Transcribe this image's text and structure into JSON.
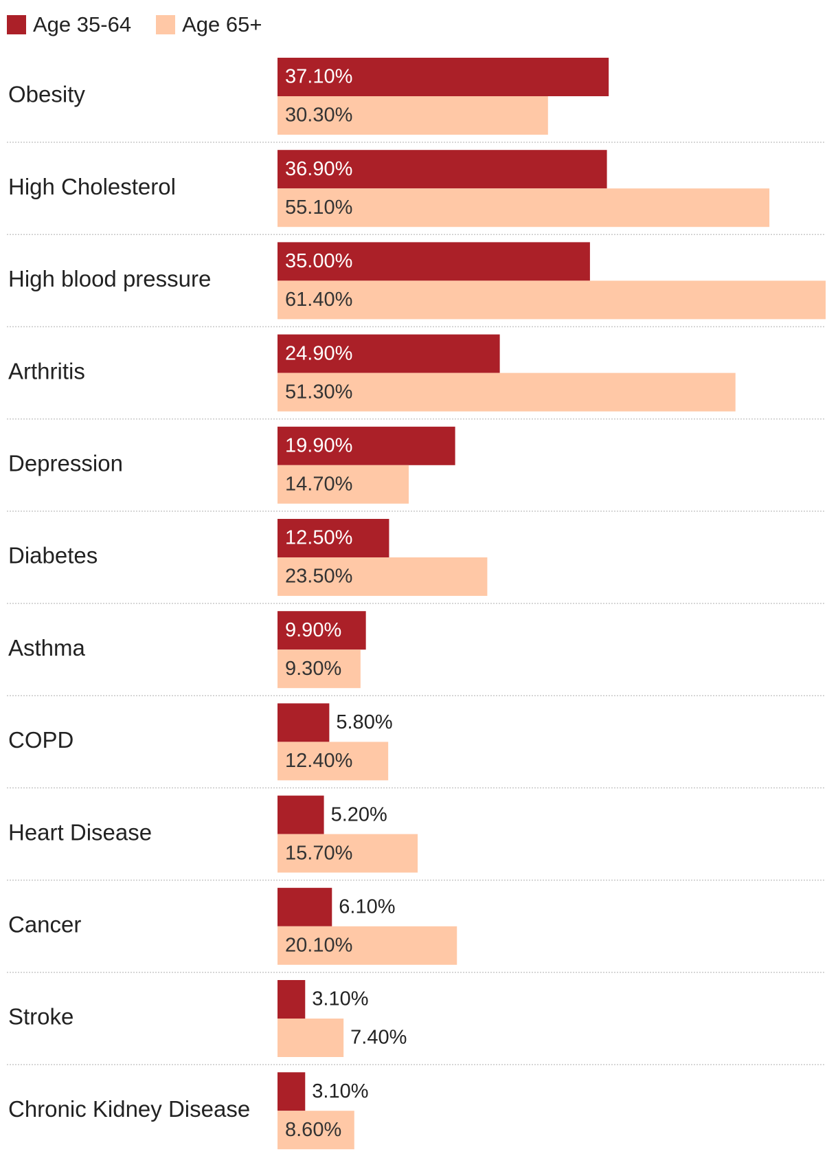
{
  "chart_data": {
    "type": "bar",
    "orientation": "horizontal",
    "title": "",
    "xlabel": "",
    "ylabel": "",
    "xlim": [
      0,
      61.4
    ],
    "grid": false,
    "legend_position": "top-left",
    "categories": [
      "Obesity",
      "High Cholesterol",
      "High blood pressure",
      "Arthritis",
      "Depression",
      "Diabetes",
      "Asthma",
      "COPD",
      "Heart Disease",
      "Cancer",
      "Stroke",
      "Chronic Kidney Disease"
    ],
    "series": [
      {
        "name": "Age 35-64",
        "color": "#ab2028",
        "values": [
          37.1,
          36.9,
          35.0,
          24.9,
          19.9,
          12.5,
          9.9,
          5.8,
          5.2,
          6.1,
          3.1,
          3.1
        ],
        "labels": [
          "37.10%",
          "36.90%",
          "35.00%",
          "24.90%",
          "19.90%",
          "12.50%",
          "9.90%",
          "5.80%",
          "5.20%",
          "6.10%",
          "3.10%",
          "3.10%"
        ]
      },
      {
        "name": "Age 65+",
        "color": "#ffc8a6",
        "values": [
          30.3,
          55.1,
          61.4,
          51.3,
          14.7,
          23.5,
          9.3,
          12.4,
          15.7,
          20.1,
          7.4,
          8.6
        ],
        "labels": [
          "30.30%",
          "55.10%",
          "61.40%",
          "51.30%",
          "14.70%",
          "23.50%",
          "9.30%",
          "12.40%",
          "15.70%",
          "20.10%",
          "7.40%",
          "8.60%"
        ]
      }
    ],
    "label_colors": {
      "inside_dark": "#ffffff",
      "inside_light": "#333333",
      "outside": "#222222"
    }
  }
}
